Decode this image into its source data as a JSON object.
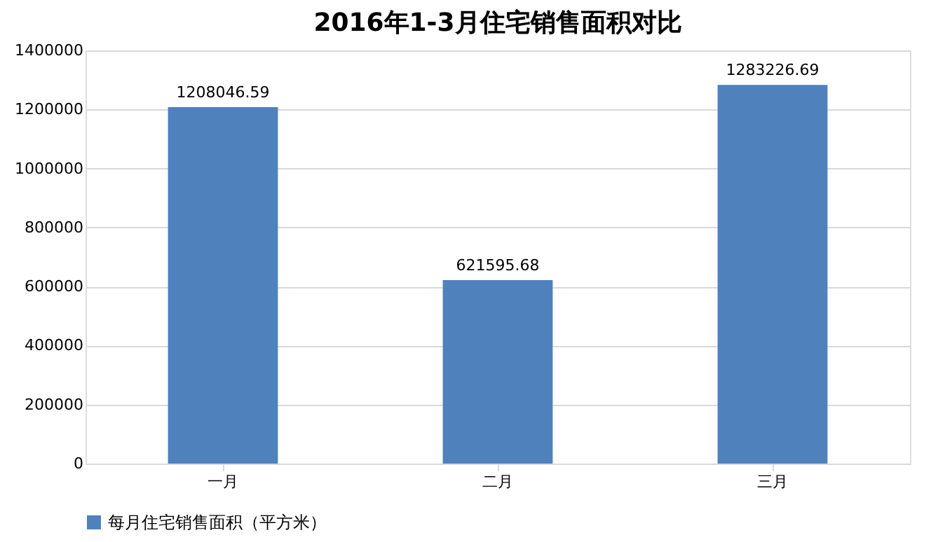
{
  "chart_data": {
    "type": "bar",
    "title": "2016年1-3月住宅销售面积对比",
    "categories": [
      "一月",
      "二月",
      "三月"
    ],
    "series": [
      {
        "name": "每月住宅销售面积（平方米）",
        "color": "#4f81bd",
        "values": [
          1208046.59,
          621595.68,
          1283226.69
        ]
      }
    ],
    "ylim": [
      0,
      1400000
    ],
    "yticks": [
      0,
      200000,
      400000,
      600000,
      800000,
      1000000,
      1200000,
      1400000
    ],
    "grid": "y",
    "legend": "bottom",
    "data_labels": true
  }
}
